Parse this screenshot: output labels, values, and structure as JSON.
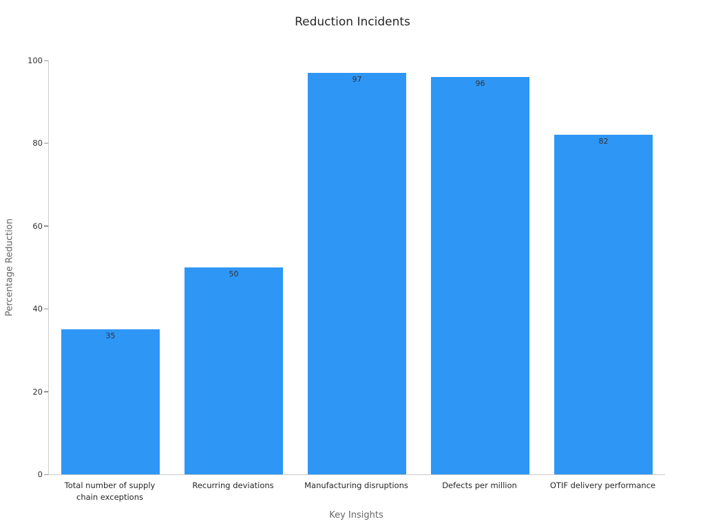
{
  "chart_data": {
    "type": "bar",
    "title": "Reduction Incidents",
    "xlabel": "Key Insights",
    "ylabel": "Percentage Reduction",
    "categories": [
      "Total number of supply chain exceptions",
      "Recurring deviations",
      "Manufacturing disruptions",
      "Defects per million",
      "OTIF delivery performance"
    ],
    "values": [
      35,
      50,
      97,
      96,
      82
    ],
    "ylim": [
      0,
      100
    ],
    "yticks": [
      0,
      20,
      40,
      60,
      80,
      100
    ],
    "bar_color": "#2e96f5",
    "value_label_color": "#333333",
    "grid": false,
    "legend": "none"
  }
}
